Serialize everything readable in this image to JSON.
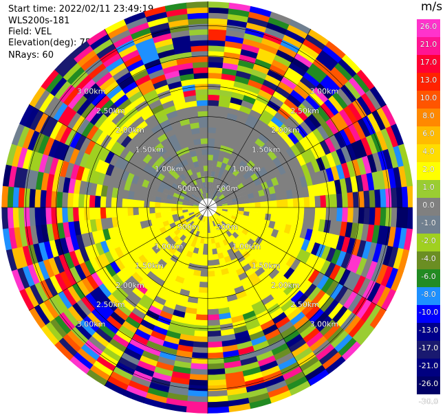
{
  "header": {
    "start_time": "Start time: 2022/02/11 23:49:19",
    "instrument": "WLS200s-181",
    "field": "Field: VEL",
    "elevation": "Elevation(deg): 75.00",
    "nrays": "NRays: 60"
  },
  "colorbar": {
    "unit": "m/s",
    "ticks": [
      "26.0",
      "21.0",
      "17.0",
      "13.0",
      "10.0",
      "8.0",
      "6.0",
      "4.0",
      "2.0",
      "1.0",
      "0.0",
      "-1.0",
      "-2.0",
      "-4.0",
      "-6.0",
      "-8.0",
      "-10.0",
      "-13.0",
      "-17.0",
      "-21.0",
      "-26.0",
      "-30.0"
    ],
    "colors": [
      "#ff33cc",
      "#ff1493",
      "#ff0033",
      "#ff2200",
      "#ff5500",
      "#ff8800",
      "#ffbb00",
      "#ffdd00",
      "#ffff00",
      "#9acd32",
      "#808080",
      "#708090",
      "#a0d020",
      "#6b8e23",
      "#228b22",
      "#1e90ff",
      "#0000ff",
      "#00008b",
      "#191970",
      "#000080",
      "#000066"
    ]
  },
  "chart_data": {
    "type": "heatmap",
    "projection": "polar PPI",
    "field": "VEL",
    "units": "m/s",
    "range_rings_labels": [
      "500m",
      "1.00km",
      "1.50km",
      "2.00km",
      "2.50km",
      "3.00km"
    ],
    "range_rings_km": [
      0.5,
      1.0,
      1.5,
      2.0,
      2.5,
      3.0
    ],
    "max_range_km": 3.4,
    "n_rays": 60,
    "velocity_range": [
      -30,
      30
    ],
    "pattern": "near-range gates ~0 to +2 m/s (grey/yellow); outer gates highly variable (noise) across full scale",
    "grid": true,
    "colorbar_position": "right"
  }
}
